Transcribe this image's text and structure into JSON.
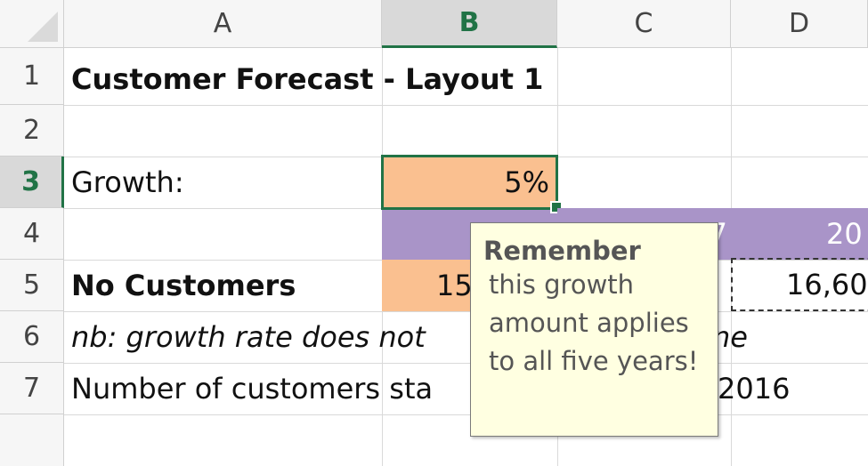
{
  "columns": [
    "A",
    "B",
    "C",
    "D"
  ],
  "rows": [
    "1",
    "2",
    "3",
    "4",
    "5",
    "6",
    "7"
  ],
  "cells": {
    "a1": "Customer Forecast - Layout 1",
    "a3": "Growth:",
    "b3": "5%",
    "a5": "No Customers",
    "b5": "15",
    "d4": "20",
    "c4": "7",
    "d5": "16,60",
    "a6": "nb: growth rate does not",
    "c6": "ne",
    "a7": "Number of customers sta",
    "c7": "2016"
  },
  "comment": {
    "author": "Remember",
    "text": "this growth amount applies to all five years!"
  },
  "colors": {
    "input": "#fac090",
    "header": "#a994c8",
    "selection": "#217346",
    "comment_bg": "#ffffe1"
  }
}
